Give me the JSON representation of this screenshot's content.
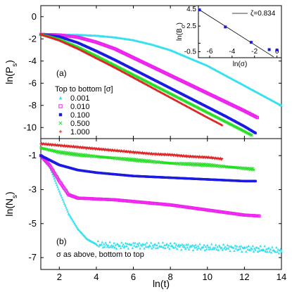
{
  "chart_data": [
    {
      "id": "panel_a",
      "type": "scatter",
      "panel_label": "(a)",
      "ylabel": "ln(P_s)",
      "ylabel_main": "ln(P",
      "ylabel_sub": "s",
      "ylabel_close": ")",
      "xlim": [
        1,
        14
      ],
      "ylim": [
        -11,
        1
      ],
      "xticks": [
        2,
        4,
        6,
        8,
        10,
        12,
        14
      ],
      "yticks": [
        0,
        -2,
        -4,
        -6,
        -8,
        -10
      ],
      "legend_title": "Top to bottom [σ]",
      "series": [
        {
          "name": "0.001",
          "color": "#33e0f0",
          "marker": "triangle",
          "x": [
            1,
            2,
            3,
            4,
            5,
            6,
            7,
            8,
            9,
            10,
            11,
            12,
            13,
            14
          ],
          "y": [
            -1.6,
            -1.6,
            -1.62,
            -1.7,
            -1.85,
            -2.1,
            -2.5,
            -3.0,
            -3.7,
            -4.4,
            -5.3,
            -6.2,
            -7.1,
            -8.0
          ]
        },
        {
          "name": "0.010",
          "color": "#ee22ee",
          "marker": "square",
          "x": [
            1,
            2,
            3,
            4,
            5,
            6,
            7,
            8,
            9,
            10,
            11,
            12,
            12.7
          ],
          "y": [
            -1.6,
            -1.65,
            -1.85,
            -2.3,
            -2.9,
            -3.7,
            -4.5,
            -5.3,
            -6.1,
            -6.9,
            -7.7,
            -8.5,
            -9.1
          ]
        },
        {
          "name": "0.100",
          "color": "#1a1ae0",
          "marker": "filled-square",
          "x": [
            1,
            2,
            3,
            4,
            5,
            6,
            7,
            8,
            9,
            10,
            11,
            12,
            12.6
          ],
          "y": [
            -1.6,
            -1.8,
            -2.35,
            -3.1,
            -3.9,
            -4.75,
            -5.6,
            -6.45,
            -7.3,
            -8.15,
            -9.0,
            -9.9,
            -10.5
          ]
        },
        {
          "name": "0.500",
          "color": "#22dd22",
          "marker": "cross",
          "x": [
            1,
            2,
            3,
            4,
            5,
            6,
            7,
            8,
            9,
            10,
            11,
            12,
            12.4
          ],
          "y": [
            -1.6,
            -2.05,
            -2.75,
            -3.55,
            -4.4,
            -5.25,
            -6.1,
            -6.95,
            -7.8,
            -8.65,
            -9.5,
            -10.35,
            -10.7
          ]
        },
        {
          "name": "1.000",
          "color": "#dd2222",
          "marker": "plus",
          "x": [
            1,
            2,
            3,
            4,
            5,
            6,
            7,
            8,
            9,
            10,
            10.8
          ],
          "y": [
            -1.6,
            -2.15,
            -2.9,
            -3.75,
            -4.6,
            -5.5,
            -6.4,
            -7.3,
            -8.2,
            -9.1,
            -9.8
          ]
        }
      ]
    },
    {
      "id": "panel_b",
      "type": "scatter",
      "panel_label": "(b)",
      "ylabel": "ln(N_s)",
      "ylabel_main": "ln(N",
      "ylabel_sub": "s",
      "ylabel_close": ")",
      "xlabel": "ln(t)",
      "xlim": [
        1,
        14
      ],
      "ylim": [
        -7.7,
        0
      ],
      "xticks": [
        2,
        4,
        6,
        8,
        10,
        12,
        14
      ],
      "yticks": [
        -1,
        -3,
        -5,
        -7
      ],
      "annotation": "σ as above, bottom to top",
      "series": [
        {
          "name": "0.001",
          "color": "#33e0f0",
          "marker": "triangle",
          "x": [
            1,
            1.5,
            2,
            2.5,
            3,
            3.5,
            4,
            5,
            6,
            7,
            8,
            9,
            10,
            11,
            12,
            13,
            14
          ],
          "y": [
            -1.0,
            -1.7,
            -3.1,
            -4.4,
            -5.3,
            -5.9,
            -6.2,
            -6.3,
            -6.25,
            -6.3,
            -6.3,
            -6.35,
            -6.4,
            -6.4,
            -6.45,
            -6.5,
            -6.6
          ]
        },
        {
          "name": "0.010",
          "color": "#ee22ee",
          "marker": "square",
          "x": [
            1,
            1.5,
            2,
            2.5,
            3,
            4,
            5,
            6,
            7,
            8,
            9,
            10,
            11,
            12,
            12.8
          ],
          "y": [
            -1.0,
            -1.6,
            -2.5,
            -3.3,
            -3.5,
            -3.55,
            -3.6,
            -3.7,
            -3.8,
            -3.9,
            -4.05,
            -4.2,
            -4.35,
            -4.5,
            -4.55
          ]
        },
        {
          "name": "0.100",
          "color": "#1a1ae0",
          "marker": "filled-square",
          "x": [
            1,
            2,
            3,
            4,
            5,
            6,
            7,
            8,
            9,
            10,
            11,
            12,
            12.6
          ],
          "y": [
            -1.0,
            -1.55,
            -1.85,
            -2.0,
            -2.1,
            -2.2,
            -2.25,
            -2.3,
            -2.35,
            -2.4,
            -2.45,
            -2.5,
            -2.5
          ]
        },
        {
          "name": "0.500",
          "color": "#22dd22",
          "marker": "cross",
          "x": [
            1,
            2,
            3,
            4,
            5,
            6,
            7,
            8,
            9,
            10,
            11,
            12,
            12.5
          ],
          "y": [
            -0.55,
            -0.8,
            -0.95,
            -1.05,
            -1.15,
            -1.25,
            -1.35,
            -1.45,
            -1.5,
            -1.55,
            -1.65,
            -1.75,
            -1.8
          ]
        },
        {
          "name": "1.000",
          "color": "#dd2222",
          "marker": "plus",
          "x": [
            1,
            2,
            3,
            4,
            5,
            6,
            7,
            8,
            9,
            10,
            10.8
          ],
          "y": [
            -0.3,
            -0.4,
            -0.5,
            -0.6,
            -0.7,
            -0.8,
            -0.9,
            -0.95,
            -1.05,
            -1.1,
            -1.2
          ]
        }
      ]
    },
    {
      "id": "inset",
      "type": "scatter",
      "xlabel": "ln(σ)",
      "ylabel": "ln(B_σ)",
      "ylabel_main": "ln(B",
      "ylabel_sub": "σ",
      "ylabel_close": ")",
      "xlim": [
        -7,
        0.4
      ],
      "ylim": [
        -1.2,
        4.9
      ],
      "xticks": [
        -6,
        -4,
        -2,
        0
      ],
      "yticks": [
        4.5,
        2.5,
        0.5,
        -0.5
      ],
      "ytick_labels": [
        "4.5",
        "2.5",
        "",
        "-0.5"
      ],
      "fit_label": "ζ=0.834",
      "fit": {
        "slope": -0.834,
        "intercept": -1.35
      },
      "points": [
        {
          "x": -6.9,
          "y": 4.4,
          "color": "#1a1ae0"
        },
        {
          "x": -4.6,
          "y": 2.4,
          "color": "#1a1ae0"
        },
        {
          "x": -2.3,
          "y": 0.6,
          "color": "#1a1ae0"
        },
        {
          "x": -0.69,
          "y": -0.25,
          "color": "#1a1ae0"
        },
        {
          "x": 0.0,
          "y": -0.3,
          "color": "#1a1ae0"
        }
      ]
    }
  ]
}
